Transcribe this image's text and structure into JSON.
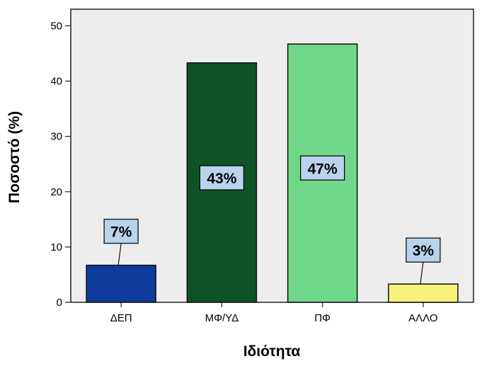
{
  "chart_data": {
    "type": "bar",
    "xlabel": "Ιδιότητα",
    "ylabel": "Ποσοστό (%)",
    "ylim": [
      0,
      53
    ],
    "yticks": [
      0,
      10,
      20,
      30,
      40,
      50
    ],
    "grid": false,
    "categories": [
      "ΔΕΠ",
      "ΜΦ/ΥΔ",
      "ΠΦ",
      "ΑΛΛΟ"
    ],
    "values": [
      6.7,
      43.3,
      46.7,
      3.3
    ],
    "data_labels": [
      "7%",
      "43%",
      "47%",
      "3%"
    ],
    "colors": [
      "#0f3a9e",
      "#0e5227",
      "#6fd888",
      "#f6f27a"
    ],
    "label_style": {
      "fill": "#b9d3ec",
      "stroke": "#000000"
    },
    "plot_background": "#ededed"
  }
}
